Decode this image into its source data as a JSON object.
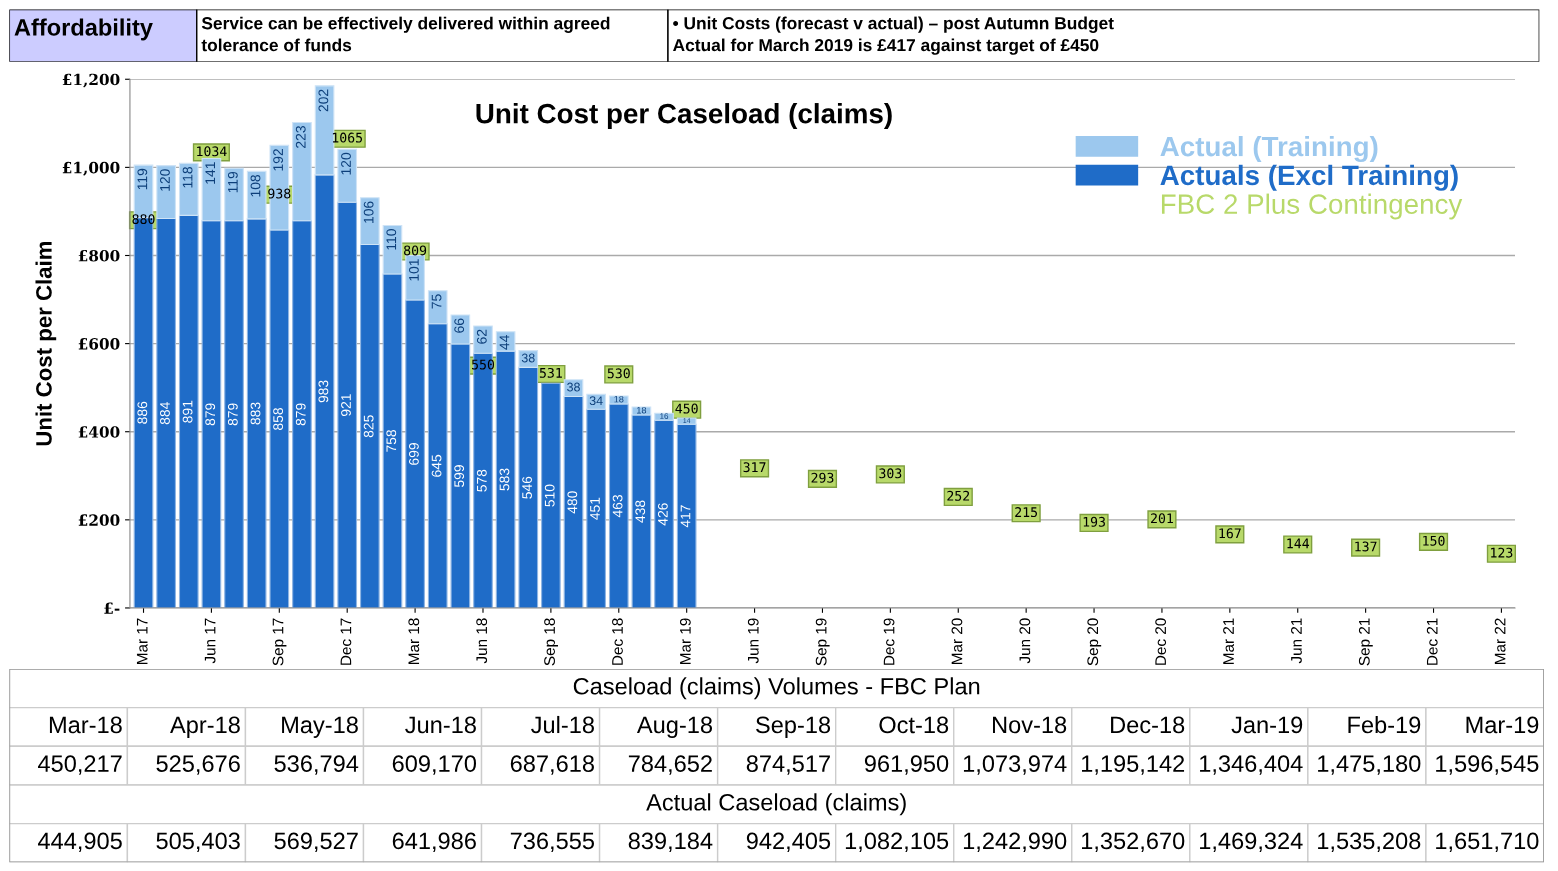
{
  "chart_data": [
    {
      "type": "other",
      "annotations": [
        "Affordability",
        "Service can be effectively delivered within agreed\ntolerance of funds",
        "• Unit Costs (forecast v actual) – post Autumn Budget\nActual for March 2019 is £417 against target of £450"
      ]
    },
    {
      "type": "bar",
      "title": "Unit Cost per Caseload (claims)",
      "ylabel": "Unit Cost per Claim",
      "stacked": true,
      "categories": [
        "Mar 17",
        null,
        null,
        "Jun 17",
        null,
        null,
        "Sep 17",
        null,
        null,
        "Dec 17",
        null,
        null,
        "Mar 18",
        null,
        null,
        "Jun 18",
        null,
        null,
        "Sep 18",
        null,
        null,
        "Dec 18",
        null,
        null,
        "Mar 19",
        null,
        null,
        "Jun 19",
        null,
        null,
        "Sep 19",
        null,
        null,
        "Dec 19",
        null,
        null,
        "Mar 20",
        null,
        null,
        "Jun 20",
        null,
        null,
        "Sep 20",
        null,
        null,
        "Dec 20",
        null,
        null,
        "Mar 21",
        null,
        null,
        "Jun 21",
        null,
        null,
        "Sep 21",
        null,
        null,
        "Dec 21",
        null,
        null,
        "Mar 22"
      ],
      "series": [
        {
          "name": "Actuals (Excl Training)",
          "color": "#1f6cc8",
          "values": [
            886,
            884,
            891,
            879,
            879,
            883,
            858,
            879,
            983,
            921,
            825,
            758,
            699,
            645,
            599,
            578,
            583,
            546,
            510,
            480,
            451,
            463,
            438,
            426,
            417,
            null,
            null,
            null,
            null,
            null,
            null,
            null,
            null,
            null,
            null,
            null,
            null,
            null,
            null,
            null,
            null,
            null,
            null,
            null,
            null,
            null,
            null,
            null,
            null,
            null,
            null,
            null,
            null,
            null,
            null,
            null,
            null,
            null,
            null,
            null,
            null
          ]
        },
        {
          "name": "Actual (Training)",
          "color": "#9cc8ee",
          "values": [
            119,
            120,
            118,
            141,
            119,
            108,
            192,
            223,
            202,
            120,
            106,
            110,
            101,
            75,
            66,
            62,
            44,
            38,
            null,
            38,
            34,
            18,
            18,
            16,
            14,
            null,
            null,
            null,
            null,
            null,
            null,
            null,
            null,
            null,
            null,
            null,
            null,
            null,
            null,
            null,
            null,
            null,
            null,
            null,
            null,
            null,
            null,
            null,
            null,
            null,
            null,
            null,
            null,
            null,
            null,
            null,
            null,
            null,
            null,
            null,
            null
          ]
        },
        {
          "name": "FBC 2 Plus Contingency",
          "type": "scatter",
          "marker": "square",
          "color": "#b8d96a",
          "values": [
            880,
            null,
            null,
            1034,
            null,
            null,
            938,
            null,
            null,
            1065,
            null,
            null,
            809,
            null,
            null,
            550,
            null,
            null,
            531,
            null,
            null,
            530,
            null,
            null,
            450,
            null,
            null,
            317,
            null,
            null,
            293,
            null,
            null,
            303,
            null,
            null,
            252,
            null,
            null,
            215,
            null,
            null,
            193,
            null,
            null,
            201,
            null,
            null,
            167,
            null,
            null,
            144,
            null,
            null,
            137,
            null,
            null,
            150,
            null,
            null,
            123
          ]
        }
      ],
      "ylim": [
        0,
        1200
      ],
      "yticks": [
        {
          "value": 0,
          "label": "£-"
        },
        {
          "value": 200,
          "label": "£200"
        },
        {
          "value": 400,
          "label": "£400"
        },
        {
          "value": 600,
          "label": "£600"
        },
        {
          "value": 800,
          "label": "£800"
        },
        {
          "value": 1000,
          "label": "£1,000"
        },
        {
          "value": 1200,
          "label": "£1,200"
        }
      ],
      "grid": "y",
      "legend": "top right",
      "data_labels": true
    },
    {
      "type": "other",
      "categories": [
        "Mar-18",
        "Apr-18",
        "May-18",
        "Jun-18",
        "Jul-18",
        "Aug-18",
        "Sep-18",
        "Oct-18",
        "Nov-18",
        "Dec-18",
        "Jan-19",
        "Feb-19",
        "Mar-19"
      ],
      "series": [
        {
          "name": "Caseload (claims) Volumes - FBC Plan",
          "values": [
            450217,
            525676,
            536794,
            609170,
            687618,
            784652,
            874517,
            961950,
            1073974,
            1195142,
            1346404,
            1475180,
            1596545
          ],
          "value_labels": [
            "450,217",
            "525,676",
            "536,794",
            "609,170",
            "687,618",
            "784,652",
            "874,517",
            "961,950",
            "1,073,974",
            "1,195,142",
            "1,346,404",
            "1,475,180",
            "1,596,545"
          ]
        },
        {
          "name": "Actual Caseload (claims)",
          "values": [
            444905,
            505403,
            569527,
            641986,
            736555,
            839184,
            942405,
            1082105,
            1242990,
            1352670,
            1469324,
            1535208,
            1651710
          ],
          "value_labels": [
            "444,905",
            "505,403",
            "569,527",
            "641,986",
            "736,555",
            "839,184",
            "942,405",
            "1,082,105",
            "1,242,990",
            "1,352,670",
            "1,469,324",
            "1,535,208",
            "1,651,710"
          ]
        }
      ]
    }
  ]
}
